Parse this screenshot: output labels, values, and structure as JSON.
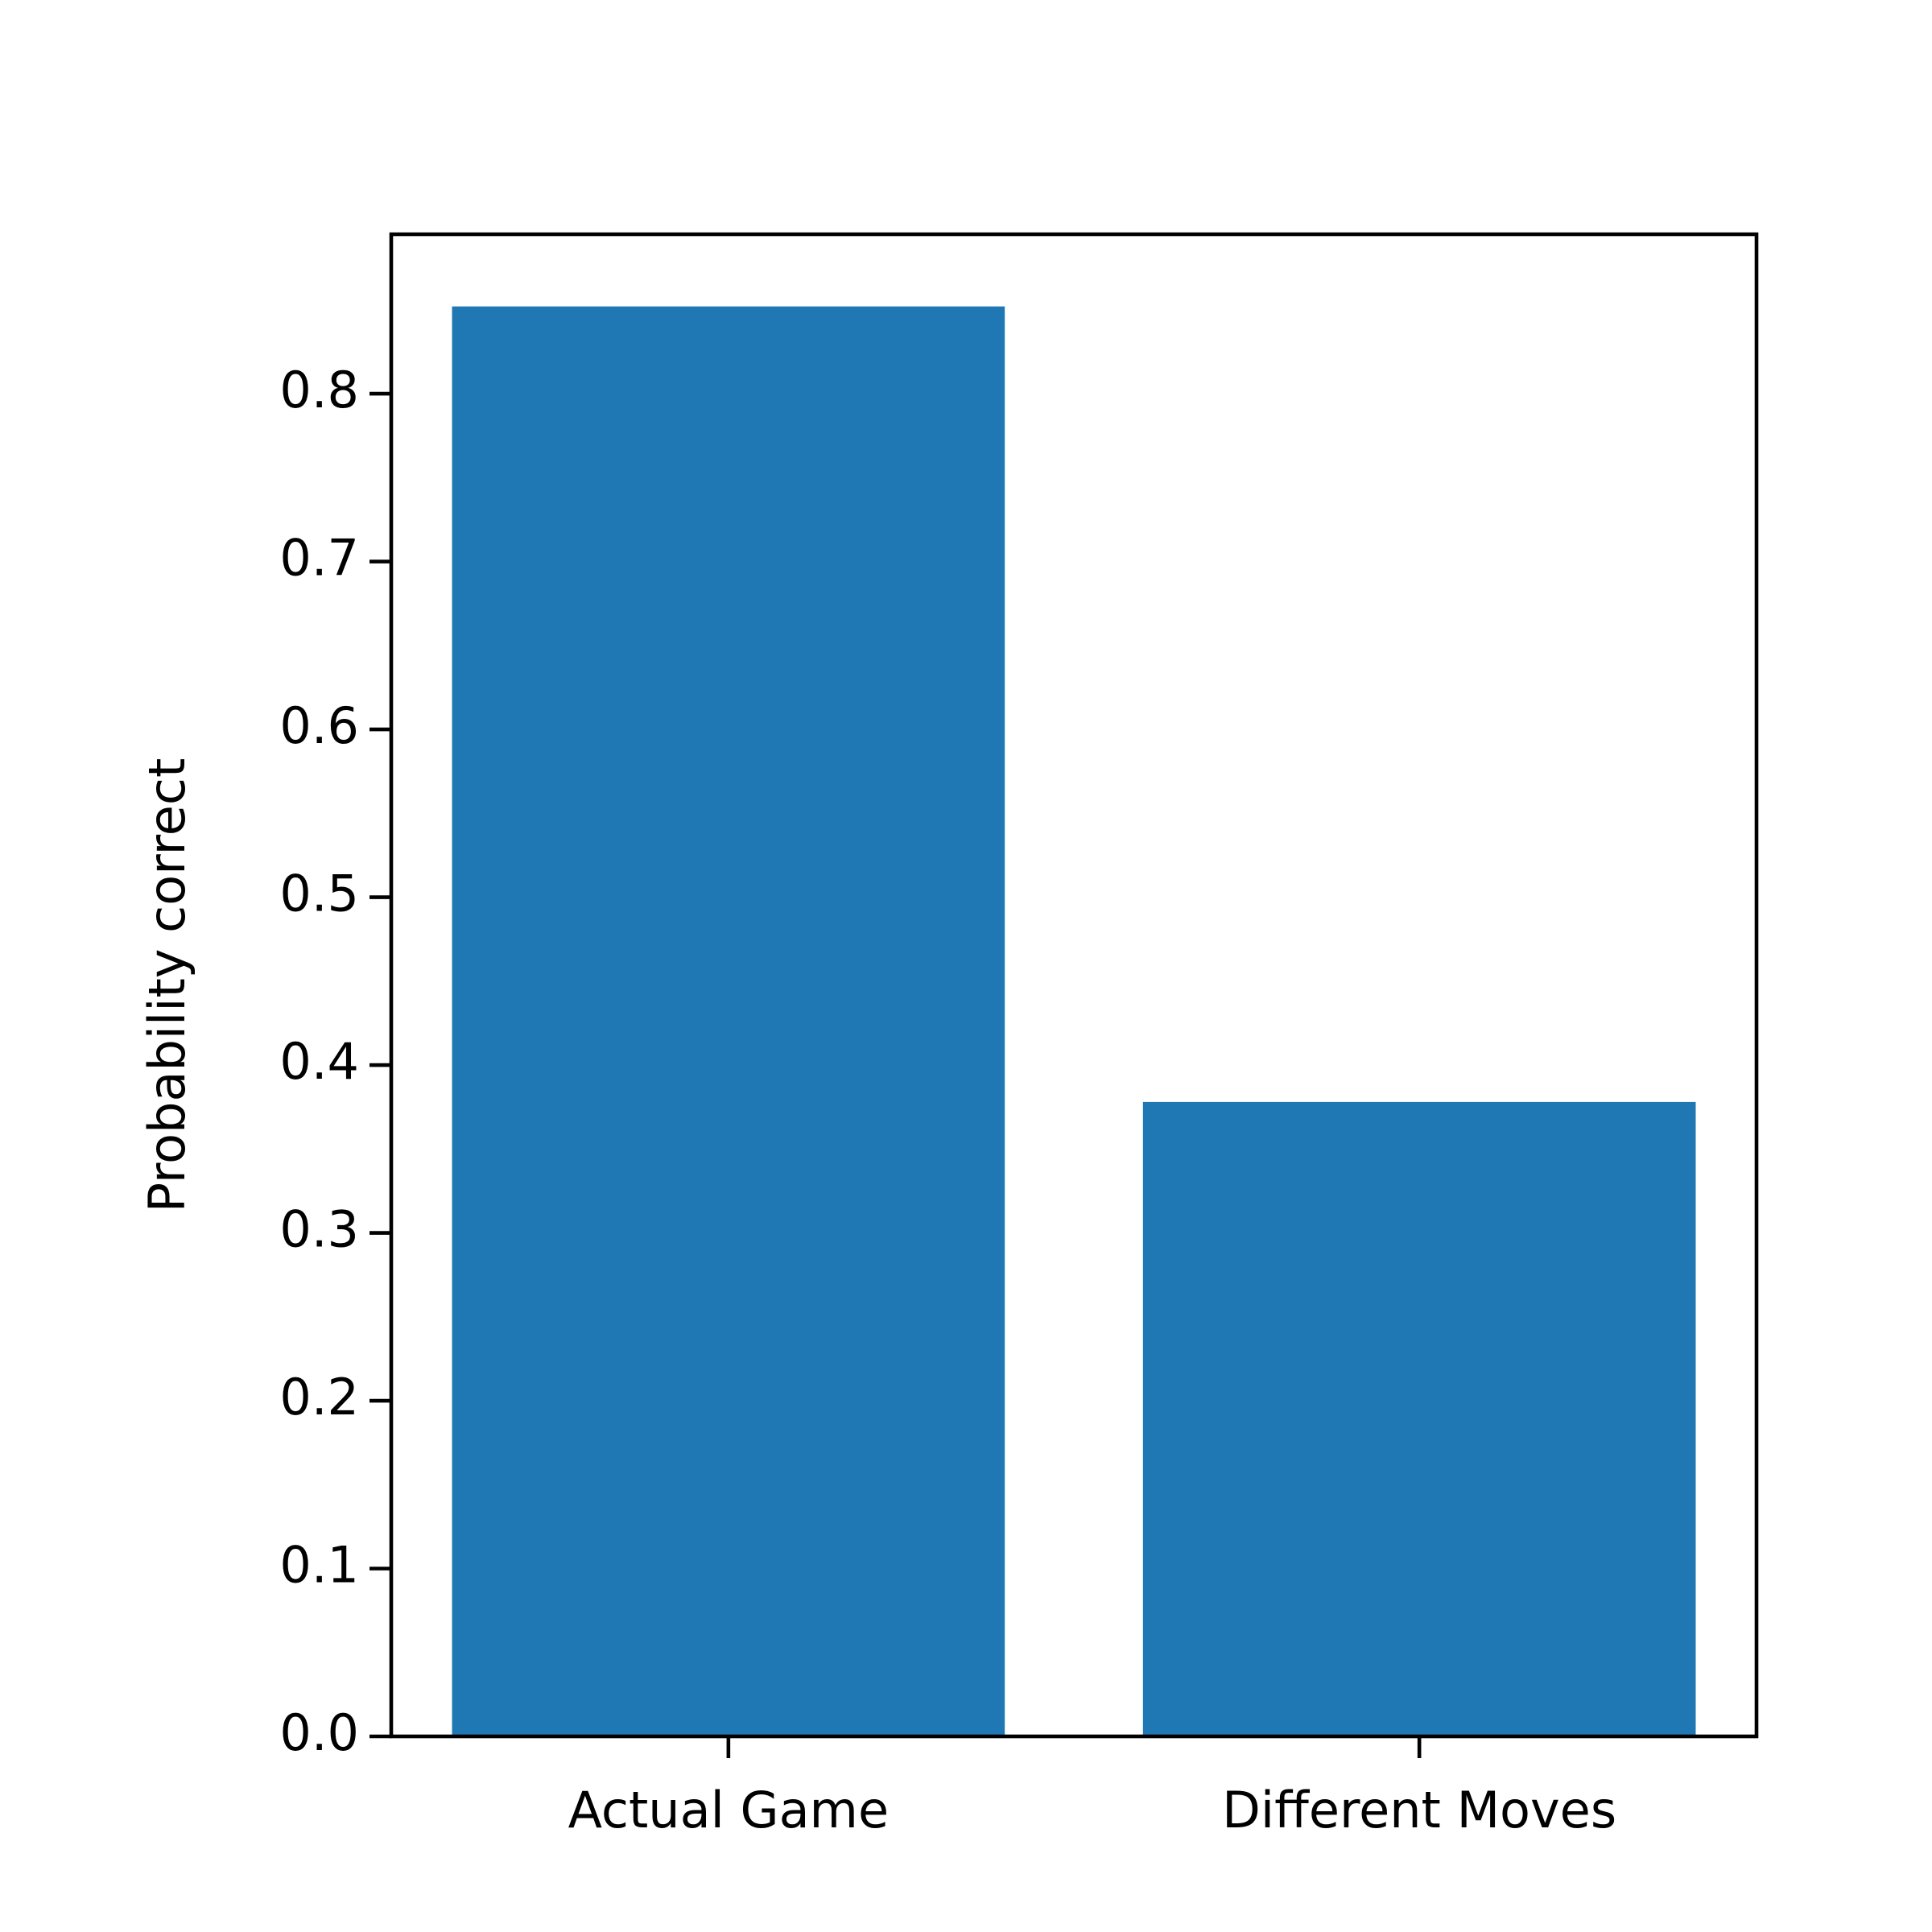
{
  "chart_data": {
    "type": "bar",
    "y_label": "Probability correct",
    "categories": [
      "Actual Game",
      "Different Moves"
    ],
    "values": [
      0.852,
      0.378
    ],
    "color": "#1f77b4",
    "ylim": [
      0,
      0.895
    ],
    "yticks": [
      {
        "value": 0,
        "label": "0.0"
      },
      0.1,
      0.2,
      0.3,
      0.4,
      0.5,
      0.6,
      0.7,
      0.8
    ]
  }
}
